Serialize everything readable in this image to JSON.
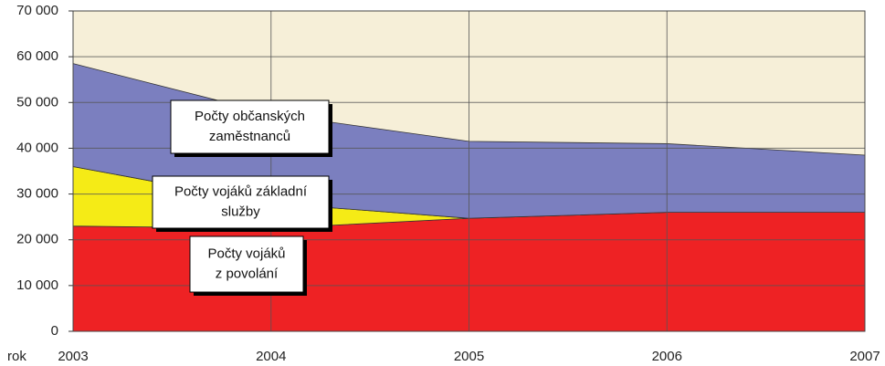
{
  "chart_data": {
    "type": "stacked_area",
    "xlabel": "rok",
    "categories": [
      "2003",
      "2004",
      "2005",
      "2006",
      "2007"
    ],
    "series": [
      {
        "label": [
          "Počty vojáků",
          "z povolání"
        ],
        "color": "#ee2224",
        "values": [
          23000,
          22500,
          24700,
          26000,
          26000
        ]
      },
      {
        "label": [
          "Počty vojáků základní",
          "služby"
        ],
        "color": "#f5eb16",
        "values": [
          13000,
          5500,
          0,
          0,
          0
        ]
      },
      {
        "label": [
          "Počty občanských",
          "zaměstnanců"
        ],
        "color": "#7b7fbf",
        "values": [
          22500,
          19500,
          16800,
          15000,
          12500
        ]
      }
    ],
    "ylim": [
      0,
      70000
    ],
    "yticks": [
      0,
      {
        "value": 10000,
        "label": "10 000"
      },
      {
        "value": 20000,
        "label": "20 000"
      },
      {
        "value": 30000,
        "label": "30 000"
      },
      {
        "value": 40000,
        "label": "40 000"
      },
      {
        "value": 50000,
        "label": "50 000"
      },
      {
        "value": 60000,
        "label": "60 000"
      },
      {
        "value": 70000,
        "label": "70 000"
      }
    ],
    "grid": true,
    "plot_background": "#f6efd8"
  }
}
